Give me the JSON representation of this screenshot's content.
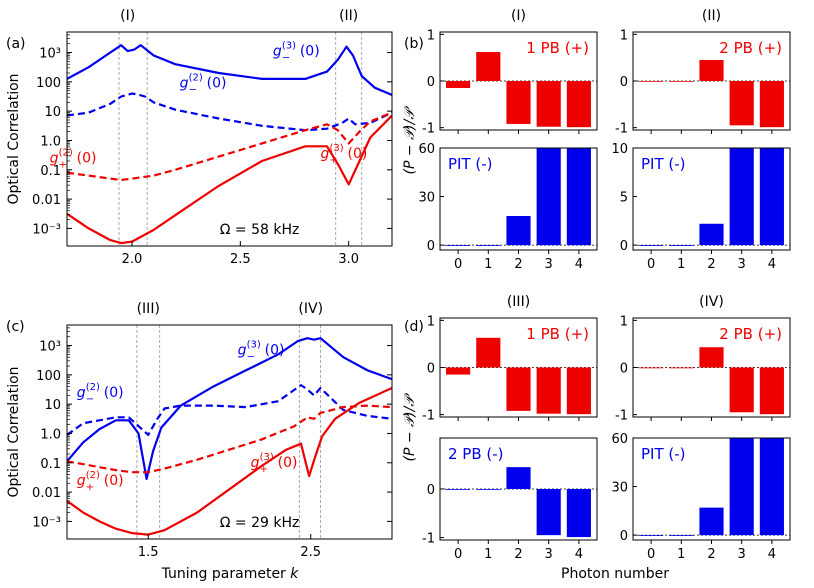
{
  "chart_data": {
    "type": "multi-panel",
    "panel_letters": [
      "(a)",
      "(b)",
      "(c)",
      "(d)"
    ],
    "x_label": "Tuning parameter k",
    "x_label_parts": {
      "text": "Tuning parameter ",
      "var": "k"
    },
    "y_label_left": "Optical Correlation",
    "y_label_right": "(P − 𝒫)/𝒫",
    "x_label_right": "Photon number",
    "colors": {
      "blue": "#0000ee",
      "red": "#ee0000",
      "grid": "#aaaaaa"
    },
    "line_panels": [
      {
        "id": "a",
        "top_labels": [
          {
            "text": "(I)",
            "k": 1.98
          },
          {
            "text": "(II)",
            "k": 3.0
          }
        ],
        "xlim": [
          1.7,
          3.2
        ],
        "ylim_log10": [
          -3.6,
          3.7
        ],
        "x_ticks": [
          {
            "v": 2.0,
            "t": "2.0"
          },
          {
            "v": 2.5,
            "t": "2.5"
          },
          {
            "v": 3.0,
            "t": "3.0"
          }
        ],
        "y_ticks": [
          {
            "e": -3,
            "t": "10⁻³"
          },
          {
            "e": -2,
            "t": "0.01"
          },
          {
            "e": -1,
            "t": "0.1"
          },
          {
            "e": 0,
            "t": "1.0"
          },
          {
            "e": 1,
            "t": "10"
          },
          {
            "e": 2,
            "t": "100"
          },
          {
            "e": 3,
            "t": "10³"
          }
        ],
        "vlines": [
          1.94,
          2.07,
          2.94,
          3.06
        ],
        "omega": "Ω = 58 kHz",
        "series": [
          {
            "name": "g_-^(3)(0)",
            "label_main": "g",
            "label_sup": "(3)",
            "label_sub": "−",
            "label_tail": "(0)",
            "color": "blue",
            "dash": false,
            "label_at": [
              2.65,
              2.9
            ],
            "k": [
              1.7,
              1.8,
              1.9,
              1.95,
              1.98,
              2.01,
              2.04,
              2.1,
              2.2,
              2.4,
              2.6,
              2.8,
              2.9,
              2.95,
              2.99,
              3.02,
              3.06,
              3.12,
              3.2
            ],
            "log10": [
              2.1,
              2.5,
              3.0,
              3.25,
              3.05,
              3.1,
              3.25,
              2.9,
              2.6,
              2.3,
              2.1,
              2.1,
              2.35,
              2.75,
              3.2,
              2.9,
              2.2,
              1.8,
              1.55
            ]
          },
          {
            "name": "g_-^(2)(0)",
            "label_main": "g",
            "label_sup": "(2)",
            "label_sub": "−",
            "label_tail": "(0)",
            "color": "blue",
            "dash": true,
            "label_at": [
              2.22,
              1.8
            ],
            "k": [
              1.7,
              1.8,
              1.9,
              1.95,
              2.0,
              2.02,
              2.06,
              2.1,
              2.2,
              2.4,
              2.6,
              2.8,
              2.9,
              2.97,
              3.0,
              3.03,
              3.1,
              3.2
            ],
            "log10": [
              0.85,
              0.95,
              1.25,
              1.5,
              1.6,
              1.58,
              1.5,
              1.3,
              1.05,
              0.75,
              0.5,
              0.35,
              0.4,
              0.6,
              0.75,
              0.55,
              0.6,
              0.95
            ]
          },
          {
            "name": "g_+^(2)(0)",
            "label_main": "g",
            "label_sup": "(2)",
            "label_sub": "+",
            "label_tail": "(0)",
            "color": "red",
            "dash": true,
            "label_at": [
              1.62,
              -0.75
            ],
            "k": [
              1.7,
              1.8,
              1.9,
              1.95,
              2.0,
              2.1,
              2.2,
              2.4,
              2.6,
              2.8,
              2.9,
              2.95,
              3.0,
              3.05,
              3.1,
              3.2
            ],
            "log10": [
              -1.1,
              -1.2,
              -1.3,
              -1.35,
              -1.3,
              -1.2,
              -1.0,
              -0.55,
              -0.1,
              0.35,
              0.55,
              0.35,
              -0.1,
              0.3,
              0.65,
              0.95
            ]
          },
          {
            "name": "g_+^(3)(0)",
            "label_main": "g",
            "label_sup": "(3)",
            "label_sub": "+",
            "label_tail": "(0)",
            "color": "red",
            "dash": false,
            "label_at": [
              2.87,
              -0.6
            ],
            "k": [
              1.7,
              1.8,
              1.9,
              1.95,
              2.0,
              2.1,
              2.2,
              2.4,
              2.6,
              2.8,
              2.9,
              2.95,
              3.0,
              3.05,
              3.1,
              3.2
            ],
            "log10": [
              -2.5,
              -3.0,
              -3.4,
              -3.5,
              -3.45,
              -3.05,
              -2.55,
              -1.55,
              -0.7,
              -0.2,
              -0.2,
              -0.8,
              -1.5,
              -0.7,
              0.1,
              0.85
            ]
          }
        ]
      },
      {
        "id": "c",
        "top_labels": [
          {
            "text": "(III)",
            "k": 1.5
          },
          {
            "text": "(IV)",
            "k": 2.5
          }
        ],
        "xlim": [
          1.0,
          3.0
        ],
        "ylim_log10": [
          -3.6,
          3.7
        ],
        "x_ticks": [
          {
            "v": 1.5,
            "t": "1.5"
          },
          {
            "v": 2.5,
            "t": "2.5"
          }
        ],
        "y_ticks": [
          {
            "e": -3,
            "t": "10⁻³"
          },
          {
            "e": -2,
            "t": "0.01"
          },
          {
            "e": -1,
            "t": "0.1"
          },
          {
            "e": 0,
            "t": "1.0"
          },
          {
            "e": 1,
            "t": "10"
          },
          {
            "e": 2,
            "t": "100"
          },
          {
            "e": 3,
            "t": "10³"
          }
        ],
        "vlines": [
          1.43,
          1.57,
          2.43,
          2.56
        ],
        "omega": "Ω = 29 kHz",
        "series": [
          {
            "name": "g_-^(3)(0)",
            "label_main": "g",
            "label_sup": "(3)",
            "label_sub": "−",
            "label_tail": "(0)",
            "color": "blue",
            "dash": false,
            "label_at": [
              2.05,
              2.7
            ],
            "k": [
              1.0,
              1.1,
              1.2,
              1.3,
              1.38,
              1.44,
              1.49,
              1.53,
              1.58,
              1.7,
              1.9,
              2.1,
              2.3,
              2.42,
              2.48,
              2.52,
              2.56,
              2.7,
              2.85,
              3.0
            ],
            "log10": [
              -0.95,
              -0.3,
              0.15,
              0.45,
              0.45,
              0.0,
              -1.55,
              -0.6,
              0.2,
              0.95,
              1.6,
              2.15,
              2.7,
              3.15,
              3.25,
              3.2,
              3.25,
              2.6,
              2.15,
              1.85
            ]
          },
          {
            "name": "g_-^(2)(0)",
            "label_main": "g",
            "label_sup": "(2)",
            "label_sub": "−",
            "label_tail": "(0)",
            "color": "blue",
            "dash": true,
            "label_at": [
              1.06,
              1.25
            ],
            "k": [
              1.0,
              1.1,
              1.2,
              1.3,
              1.38,
              1.44,
              1.5,
              1.55,
              1.6,
              1.7,
              1.9,
              2.1,
              2.3,
              2.44,
              2.48,
              2.52,
              2.56,
              2.7,
              2.85,
              3.0
            ],
            "log10": [
              -0.05,
              0.35,
              0.45,
              0.55,
              0.55,
              0.25,
              -0.05,
              0.45,
              0.85,
              0.95,
              0.95,
              0.9,
              1.1,
              1.65,
              1.5,
              1.3,
              1.55,
              0.8,
              0.6,
              0.5
            ]
          },
          {
            "name": "g_+^(2)(0)",
            "label_main": "g",
            "label_sup": "(2)",
            "label_sub": "+",
            "label_tail": "(0)",
            "color": "red",
            "dash": true,
            "label_at": [
              1.06,
              -1.75
            ],
            "k": [
              1.0,
              1.1,
              1.2,
              1.3,
              1.4,
              1.5,
              1.6,
              1.8,
              2.0,
              2.2,
              2.4,
              2.48,
              2.52,
              2.56,
              2.7,
              2.85,
              3.0
            ],
            "log10": [
              -0.95,
              -1.05,
              -1.15,
              -1.25,
              -1.32,
              -1.32,
              -1.2,
              -0.9,
              -0.55,
              -0.2,
              0.25,
              0.55,
              0.5,
              0.7,
              0.9,
              0.95,
              0.9
            ]
          },
          {
            "name": "g_+^(3)(0)",
            "label_main": "g",
            "label_sup": "(3)",
            "label_sub": "+",
            "label_tail": "(0)",
            "color": "red",
            "dash": false,
            "label_at": [
              2.13,
              -1.15
            ],
            "k": [
              1.0,
              1.1,
              1.2,
              1.3,
              1.4,
              1.5,
              1.6,
              1.8,
              2.0,
              2.2,
              2.35,
              2.44,
              2.49,
              2.53,
              2.57,
              2.65,
              2.8,
              3.0
            ],
            "log10": [
              -2.3,
              -2.7,
              -3.0,
              -3.25,
              -3.4,
              -3.45,
              -3.3,
              -2.7,
              -1.9,
              -1.1,
              -0.55,
              -0.35,
              -1.45,
              -0.75,
              -0.1,
              0.5,
              1.05,
              1.55
            ]
          }
        ]
      }
    ],
    "bar_panels": [
      {
        "id": "b1",
        "title": "(I)",
        "color": "red",
        "label": "1 PB (+)",
        "ylim": [
          -1.05,
          1.05
        ],
        "ticks": [
          1,
          0,
          -1
        ],
        "values": [
          -0.15,
          0.62,
          -0.92,
          -0.98,
          -0.99
        ],
        "show_xticks": false
      },
      {
        "id": "b2",
        "title": "(II)",
        "color": "red",
        "label": "2 PB (+)",
        "ylim": [
          -1.05,
          1.05
        ],
        "ticks": [
          1,
          0,
          -1
        ],
        "values": [
          0.0,
          0.0,
          0.45,
          -0.95,
          -0.99
        ],
        "show_xticks": false
      },
      {
        "id": "b3",
        "title": "",
        "color": "blue",
        "label": "PIT (-)",
        "ylim": [
          -3,
          60
        ],
        "ticks": [
          0,
          30,
          60
        ],
        "values": [
          0.0,
          0.0,
          18,
          60,
          60
        ],
        "show_xticks": true
      },
      {
        "id": "b4",
        "title": "",
        "color": "blue",
        "label": "PIT (-)",
        "ylim": [
          -0.5,
          10
        ],
        "ticks": [
          0,
          5,
          10
        ],
        "values": [
          0.0,
          0.0,
          2.2,
          10,
          10
        ],
        "show_xticks": true
      },
      {
        "id": "d1",
        "title": "(III)",
        "color": "red",
        "label": "1 PB (+)",
        "ylim": [
          -1.05,
          1.05
        ],
        "ticks": [
          1,
          0,
          -1
        ],
        "values": [
          -0.15,
          0.63,
          -0.92,
          -0.98,
          -0.99
        ],
        "show_xticks": false
      },
      {
        "id": "d2",
        "title": "(IV)",
        "color": "red",
        "label": "2 PB (+)",
        "ylim": [
          -1.05,
          1.05
        ],
        "ticks": [
          1,
          0,
          -1
        ],
        "values": [
          0.0,
          0.0,
          0.43,
          -0.95,
          -0.99
        ],
        "show_xticks": false
      },
      {
        "id": "d3",
        "title": "",
        "color": "blue",
        "label": "2 PB (-)",
        "ylim": [
          -1.05,
          1.05
        ],
        "ticks": [
          0,
          -1
        ],
        "values": [
          0.0,
          0.0,
          0.45,
          -0.95,
          -0.99
        ],
        "show_xticks": true
      },
      {
        "id": "d4",
        "title": "",
        "color": "blue",
        "label": "PIT (-)",
        "ylim": [
          -3,
          60
        ],
        "ticks": [
          0,
          30,
          60
        ],
        "values": [
          0.0,
          0.0,
          17,
          60,
          60
        ],
        "show_xticks": true
      }
    ],
    "photon_numbers": [
      "0",
      "1",
      "2",
      "3",
      "4"
    ]
  }
}
